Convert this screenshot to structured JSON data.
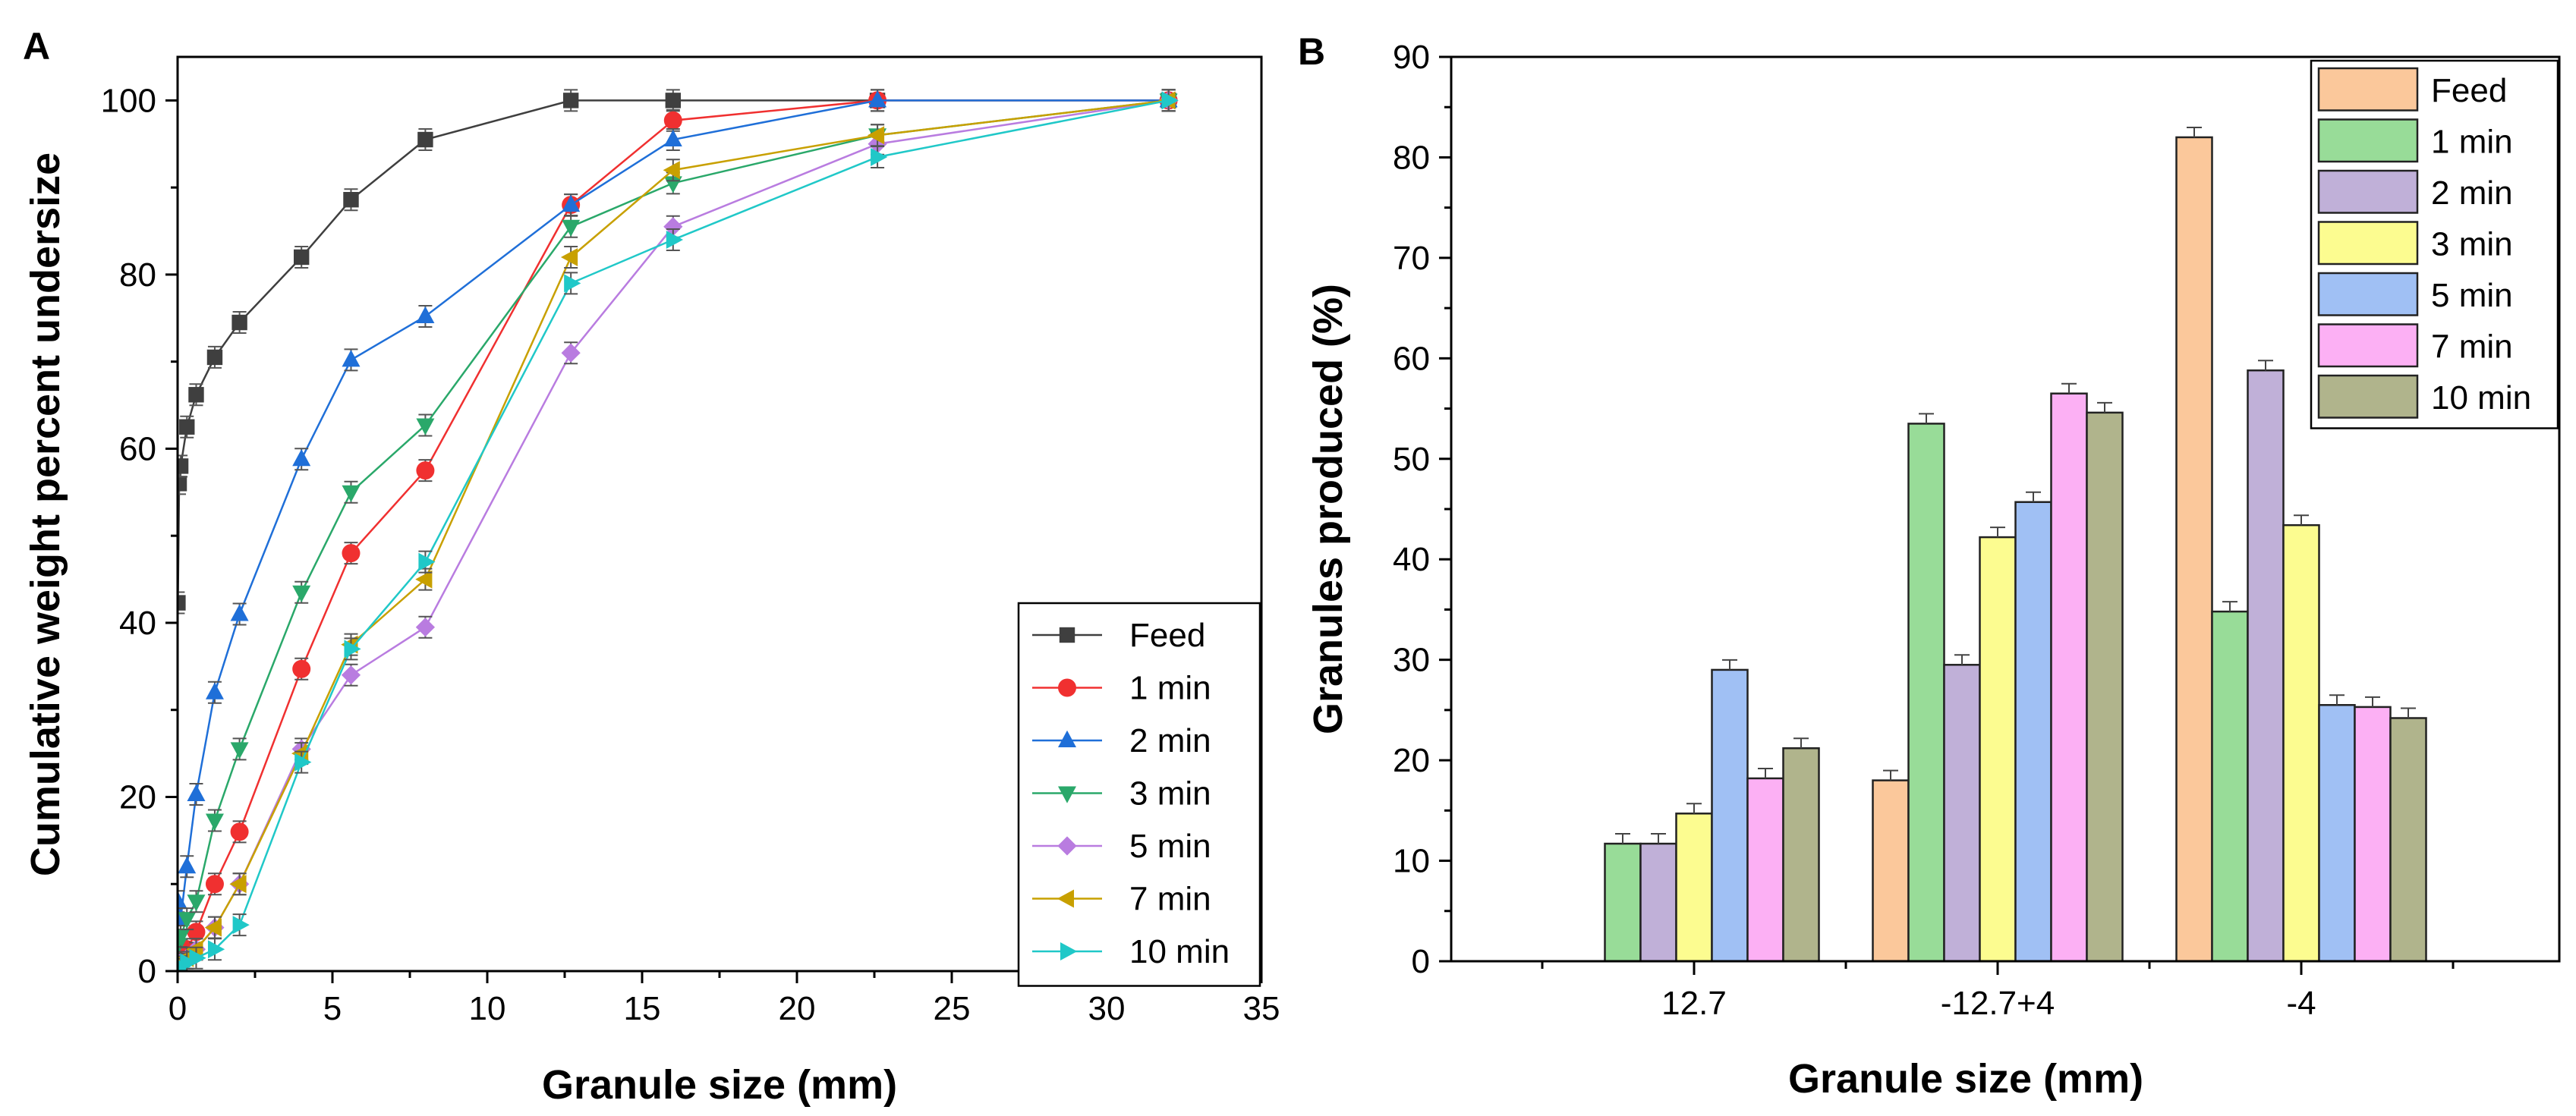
{
  "chart_data": [
    {
      "panel_label": "A",
      "type": "line",
      "xlabel": "Granule size (mm)",
      "ylabel": "Cumulative weight percent undersize",
      "xlim": [
        0,
        35
      ],
      "ylim": [
        0,
        105
      ],
      "xticks": [
        0,
        5,
        10,
        15,
        20,
        25,
        30,
        35
      ],
      "yticks": [
        0,
        20,
        40,
        60,
        80,
        100
      ],
      "legend_position": "bottom-right",
      "series": [
        {
          "name": "Feed",
          "marker": "square",
          "color": "#3f3f3f",
          "x": [
            0.01,
            0.05,
            0.1,
            0.3,
            0.6,
            1.2,
            2,
            4,
            5.6,
            8,
            12.7,
            16,
            22.6,
            32
          ],
          "y": [
            42.3,
            56,
            58,
            62.5,
            66.2,
            70.5,
            74.5,
            82,
            88.6,
            95.5,
            100,
            100,
            100,
            100
          ]
        },
        {
          "name": "1 min",
          "marker": "circle",
          "color": "#f03030",
          "x": [
            0.01,
            0.1,
            0.3,
            0.6,
            1.2,
            2,
            4,
            5.6,
            8,
            12.7,
            16,
            22.6,
            32
          ],
          "y": [
            0.3,
            1,
            2.5,
            4.5,
            10,
            16,
            34.7,
            48,
            57.5,
            88,
            97.7,
            100,
            100
          ]
        },
        {
          "name": "2 min",
          "marker": "triangle-up",
          "color": "#1f6fd8",
          "x": [
            0.01,
            0.1,
            0.3,
            0.6,
            1.2,
            2,
            4,
            5.6,
            8,
            12.7,
            16,
            22.6,
            32
          ],
          "y": [
            8,
            6,
            12,
            20.3,
            32,
            41,
            58.8,
            70.2,
            75.2,
            88,
            95.5,
            100,
            100
          ]
        },
        {
          "name": "3 min",
          "marker": "triangle-down",
          "color": "#2aa86a",
          "x": [
            0.01,
            0.1,
            0.3,
            0.6,
            1.2,
            2,
            4,
            5.6,
            8,
            12.7,
            16,
            22.6,
            32
          ],
          "y": [
            3,
            4,
            6,
            8,
            17.3,
            25.5,
            43.5,
            55,
            62.7,
            85.5,
            90.5,
            96,
            100
          ]
        },
        {
          "name": "5 min",
          "marker": "diamond",
          "color": "#b97ce0",
          "x": [
            0.01,
            0.1,
            0.3,
            0.6,
            1.2,
            2,
            4,
            5.6,
            8,
            12.7,
            16,
            22.6,
            32
          ],
          "y": [
            0.5,
            1,
            1.5,
            2.5,
            5,
            10,
            25.5,
            34,
            39.5,
            71,
            85.5,
            95,
            100
          ]
        },
        {
          "name": "7 min",
          "marker": "triangle-left",
          "color": "#c8a000",
          "x": [
            0.01,
            0.1,
            0.3,
            0.6,
            1.2,
            2,
            4,
            5.6,
            8,
            12.7,
            16,
            22.6,
            32
          ],
          "y": [
            0.3,
            0.8,
            1.5,
            2.5,
            5,
            10,
            25,
            37.5,
            45,
            82,
            92,
            96,
            100
          ]
        },
        {
          "name": "10 min",
          "marker": "triangle-right",
          "color": "#20c8c8",
          "x": [
            0.01,
            0.1,
            0.3,
            0.6,
            1.2,
            2,
            4,
            5.6,
            8,
            12.7,
            16,
            22.6,
            32
          ],
          "y": [
            0.2,
            0.5,
            1,
            1.5,
            2.5,
            5.3,
            24,
            37,
            47,
            79,
            84,
            93.5,
            100
          ]
        }
      ]
    },
    {
      "panel_label": "B",
      "type": "bar",
      "xlabel": "Granule size (mm)",
      "ylabel": "Granules produced (%)",
      "categories": [
        "12.7",
        "-12.7+4",
        "-4"
      ],
      "ylim": [
        0,
        90
      ],
      "yticks": [
        0,
        10,
        20,
        30,
        40,
        50,
        60,
        70,
        80,
        90
      ],
      "legend_position": "top-right",
      "series": [
        {
          "name": "Feed",
          "color": "#fbc89b",
          "values": [
            null,
            18,
            82
          ]
        },
        {
          "name": "1 min",
          "color": "#98dc98",
          "values": [
            11.7,
            53.5,
            34.8
          ]
        },
        {
          "name": "2 min",
          "color": "#c0b0d8",
          "values": [
            11.7,
            29.5,
            58.8
          ]
        },
        {
          "name": "3 min",
          "color": "#fcfc90",
          "values": [
            14.7,
            42.2,
            43.4
          ]
        },
        {
          "name": "5 min",
          "color": "#a0c0f4",
          "values": [
            29,
            45.7,
            25.5
          ]
        },
        {
          "name": "7 min",
          "color": "#fcb0f4",
          "values": [
            18.2,
            56.5,
            25.3
          ]
        },
        {
          "name": "10 min",
          "color": "#b0b48c",
          "values": [
            21.2,
            54.6,
            24.2
          ]
        }
      ]
    }
  ]
}
